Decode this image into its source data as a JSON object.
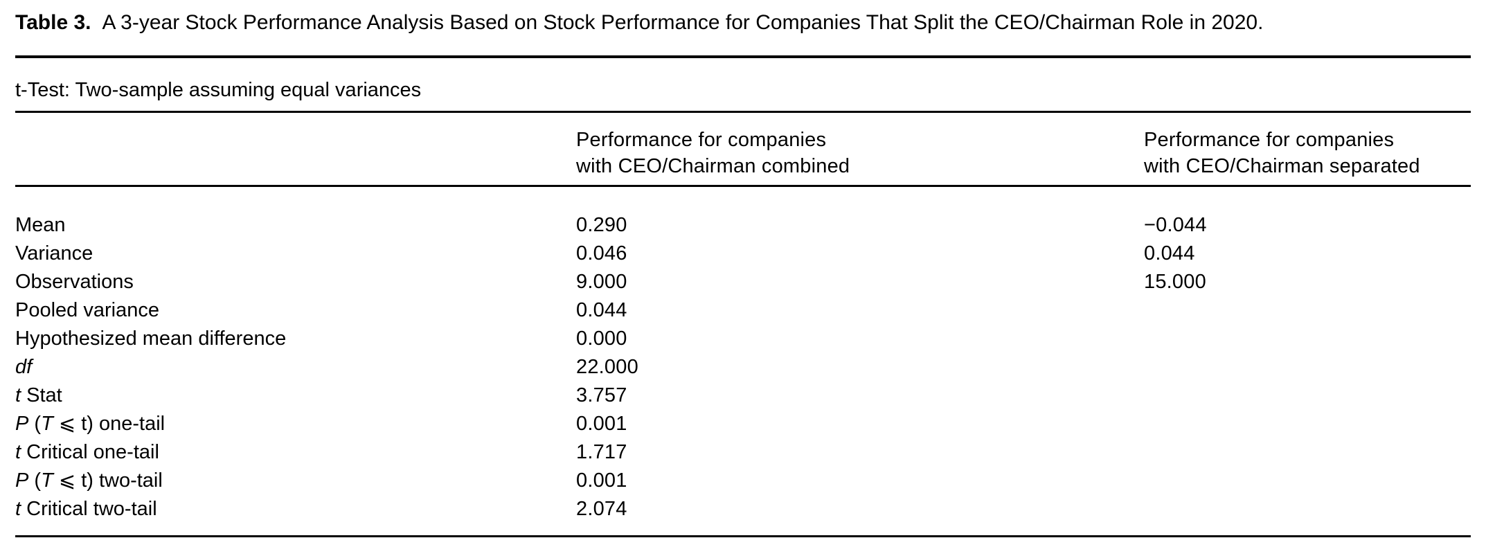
{
  "table": {
    "label": "Table 3.",
    "caption": "A 3-year Stock Performance Analysis Based on Stock Performance for Companies That Split the CEO/Chairman Role in 2020.",
    "subtitle": "t-Test: Two-sample assuming equal variances",
    "columns": [
      {
        "line1": "Performance for companies",
        "line2": "with CEO/Chairman combined"
      },
      {
        "line1": "Performance for companies",
        "line2": "with CEO/Chairman separated"
      }
    ],
    "rows": [
      {
        "label": [
          {
            "t": "Mean",
            "i": false
          }
        ],
        "combined": "0.290",
        "separated": "−0.044"
      },
      {
        "label": [
          {
            "t": "Variance",
            "i": false
          }
        ],
        "combined": "0.046",
        "separated": "0.044"
      },
      {
        "label": [
          {
            "t": "Observations",
            "i": false
          }
        ],
        "combined": "9.000",
        "separated": "15.000"
      },
      {
        "label": [
          {
            "t": "Pooled variance",
            "i": false
          }
        ],
        "combined": "0.044",
        "separated": ""
      },
      {
        "label": [
          {
            "t": "Hypothesized mean difference",
            "i": false
          }
        ],
        "combined": "0.000",
        "separated": ""
      },
      {
        "label": [
          {
            "t": "df",
            "i": true
          }
        ],
        "combined": "22.000",
        "separated": ""
      },
      {
        "label": [
          {
            "t": "t",
            "i": true
          },
          {
            "t": " Stat",
            "i": false
          }
        ],
        "combined": "3.757",
        "separated": ""
      },
      {
        "label": [
          {
            "t": "P",
            "i": true
          },
          {
            "t": " (",
            "i": false
          },
          {
            "t": "T",
            "i": true
          },
          {
            "t": " ⩽ t) one-tail",
            "i": false
          }
        ],
        "combined": "0.001",
        "separated": ""
      },
      {
        "label": [
          {
            "t": "t",
            "i": true
          },
          {
            "t": " Critical one-tail",
            "i": false
          }
        ],
        "combined": "1.717",
        "separated": ""
      },
      {
        "label": [
          {
            "t": "P",
            "i": true
          },
          {
            "t": " (",
            "i": false
          },
          {
            "t": "T",
            "i": true
          },
          {
            "t": " ⩽ t) two-tail",
            "i": false
          }
        ],
        "combined": "0.001",
        "separated": ""
      },
      {
        "label": [
          {
            "t": "t",
            "i": true
          },
          {
            "t": " Critical two-tail",
            "i": false
          }
        ],
        "combined": "2.074",
        "separated": ""
      }
    ]
  }
}
